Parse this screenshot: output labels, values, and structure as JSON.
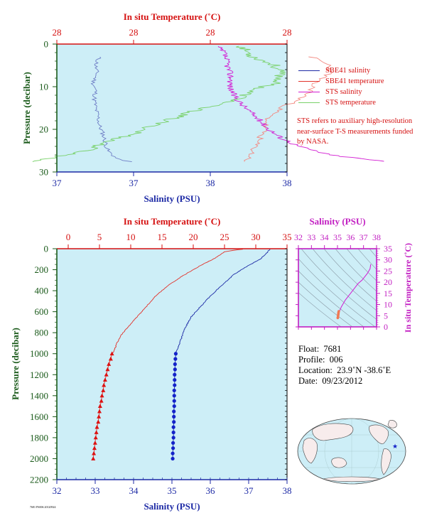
{
  "colors": {
    "plot_bg": "#cdeef7",
    "temp_axis": "#d51111",
    "salinity_axis": "#1d2aa5",
    "pressure_axis": "#1a5a1a",
    "inset_axis": "#c21fc2",
    "sbe_salinity": "#1d2aa5",
    "sbe_temperature": "#e2322a",
    "sts_salinity": "#d21bd2",
    "sts_temperature": "#79d16a",
    "marker_sal": "#1322c9",
    "marker_temp": "#dd1111"
  },
  "top_chart": {
    "temp_axis_title": "In situ Temperature (˚C)",
    "temp_ticks": [
      "28",
      "28",
      "28",
      "28"
    ],
    "salinity_axis_title": "Salinity (PSU)",
    "salinity_ticks": [
      "37",
      "37",
      "38",
      "38"
    ],
    "pressure_axis_title": "Pressure (decibar)",
    "pressure_ticks": [
      "0",
      "10",
      "20",
      "30"
    ],
    "legend": [
      {
        "label": "SBE41 salinity",
        "color": "#1d2aa5"
      },
      {
        "label": "SBE41 temperature",
        "color": "#e2322a"
      },
      {
        "label": "STS salinity",
        "color": "#d21bd2"
      },
      {
        "label": "STS temperature",
        "color": "#79d16a"
      }
    ],
    "note": "STS refers to auxiliary high-resolution near-surface T-S measurements funded by NASA."
  },
  "main_chart": {
    "temp_axis_title": "In situ Temperature (˚C)",
    "temp_ticks": [
      "0",
      "5",
      "10",
      "15",
      "20",
      "25",
      "30",
      "35"
    ],
    "salinity_axis_title": "Salinity (PSU)",
    "salinity_ticks": [
      "32",
      "33",
      "34",
      "35",
      "36",
      "37",
      "38"
    ],
    "pressure_axis_title": "Pressure (decibar)",
    "pressure_ticks": [
      "0",
      "200",
      "400",
      "600",
      "800",
      "1000",
      "1200",
      "1400",
      "1600",
      "1800",
      "2000",
      "2200"
    ]
  },
  "inset": {
    "salinity_axis_title": "Salinity (PSU)",
    "salinity_ticks": [
      "32",
      "33",
      "34",
      "35",
      "36",
      "37",
      "38"
    ],
    "temp_axis_title": "In situ Temperature (˚C)",
    "temp_ticks": [
      "0",
      "5",
      "10",
      "15",
      "20",
      "25",
      "30",
      "35"
    ]
  },
  "info": {
    "float_label": "Float:",
    "float_value": "7681",
    "profile_label": "Profile:",
    "profile_value": "006",
    "location_label": "Location:",
    "location_value": "23.9˚N  -38.6˚E",
    "date_label": "Date:",
    "date_value": "09/23/2012"
  },
  "credit": "7681 PS006 20120924",
  "chart_data": [
    {
      "type": "line",
      "title": "",
      "xlabel": "Salinity (PSU)",
      "x2label": "In situ Temperature (˚C)",
      "ylabel": "Pressure (decibar)",
      "ylim": [
        30,
        0
      ],
      "grid": false,
      "legend_position": "right",
      "series": [
        {
          "name": "SBE41 salinity",
          "axis": "salinity",
          "color": "#1d2aa5",
          "points": [
            [
              36.55,
              3
            ],
            [
              36.52,
              5
            ],
            [
              36.53,
              7
            ],
            [
              36.5,
              9
            ],
            [
              36.52,
              11
            ],
            [
              36.51,
              13
            ],
            [
              36.52,
              15
            ],
            [
              36.54,
              17
            ],
            [
              36.55,
              19
            ],
            [
              36.58,
              21
            ],
            [
              36.6,
              23
            ],
            [
              36.62,
              25
            ],
            [
              36.7,
              27
            ],
            [
              36.82,
              27.6
            ]
          ]
        },
        {
          "name": "SBE41 temperature",
          "axis": "temperature",
          "color": "#e2322a",
          "points": [
            [
              38.3,
              3
            ],
            [
              38.45,
              5
            ],
            [
              38.45,
              7
            ],
            [
              38.32,
              9
            ],
            [
              38.3,
              11
            ],
            [
              38.2,
              13
            ],
            [
              38.05,
              15
            ],
            [
              37.95,
              17
            ],
            [
              37.92,
              19
            ],
            [
              37.9,
              21
            ],
            [
              37.85,
              23
            ],
            [
              37.82,
              25
            ],
            [
              37.78,
              27
            ],
            [
              37.75,
              27.6
            ]
          ]
        },
        {
          "name": "STS salinity",
          "axis": "salinity",
          "color": "#d21bd2",
          "points": [
            [
              37.52,
              0.5
            ],
            [
              37.58,
              2
            ],
            [
              37.6,
              4
            ],
            [
              37.62,
              6
            ],
            [
              37.64,
              8
            ],
            [
              37.63,
              10
            ],
            [
              37.66,
              12
            ],
            [
              37.72,
              14
            ],
            [
              37.8,
              16
            ],
            [
              37.88,
              18
            ],
            [
              37.95,
              20
            ],
            [
              38.05,
              22
            ],
            [
              38.2,
              24
            ],
            [
              38.45,
              26
            ],
            [
              38.9,
              27.5
            ]
          ]
        },
        {
          "name": "STS temperature",
          "axis": "temperature",
          "color": "#79d16a",
          "points": [
            [
              37.72,
              0.5
            ],
            [
              37.82,
              3
            ],
            [
              38.0,
              5
            ],
            [
              38.05,
              7
            ],
            [
              38.02,
              9
            ],
            [
              37.8,
              11
            ],
            [
              37.7,
              13
            ],
            [
              37.4,
              15
            ],
            [
              37.2,
              17
            ],
            [
              37.0,
              19
            ],
            [
              36.85,
              21
            ],
            [
              36.6,
              23
            ],
            [
              36.45,
              25
            ],
            [
              36.2,
              26.5
            ],
            [
              36.0,
              27.6
            ]
          ]
        }
      ]
    },
    {
      "type": "line",
      "title": "",
      "xlabel": "Salinity (PSU)",
      "x2label": "In situ Temperature (˚C)",
      "ylabel": "Pressure (decibar)",
      "xlim": [
        32,
        38
      ],
      "x2lim": [
        0,
        35
      ],
      "ylim": [
        2200,
        0
      ],
      "grid": false,
      "series": [
        {
          "name": "SBE41 salinity",
          "axis": "salinity",
          "color": "#1d2aa5",
          "points": [
            [
              37.55,
              5
            ],
            [
              37.45,
              50
            ],
            [
              37.3,
              100
            ],
            [
              36.9,
              180
            ],
            [
              36.6,
              250
            ],
            [
              36.3,
              350
            ],
            [
              36.0,
              450
            ],
            [
              35.75,
              550
            ],
            [
              35.5,
              650
            ],
            [
              35.35,
              750
            ],
            [
              35.25,
              850
            ],
            [
              35.15,
              950
            ],
            [
              35.1,
              1000
            ]
          ],
          "markers": [
            [
              35.1,
              1000
            ],
            [
              35.09,
              1050
            ],
            [
              35.08,
              1100
            ],
            [
              35.08,
              1150
            ],
            [
              35.07,
              1200
            ],
            [
              35.07,
              1250
            ],
            [
              35.07,
              1300
            ],
            [
              35.06,
              1350
            ],
            [
              35.06,
              1400
            ],
            [
              35.06,
              1450
            ],
            [
              35.06,
              1500
            ],
            [
              35.05,
              1550
            ],
            [
              35.05,
              1600
            ],
            [
              35.05,
              1650
            ],
            [
              35.04,
              1700
            ],
            [
              35.04,
              1750
            ],
            [
              35.04,
              1800
            ],
            [
              35.03,
              1850
            ],
            [
              35.03,
              1900
            ],
            [
              35.02,
              1950
            ],
            [
              35.02,
              2000
            ]
          ]
        },
        {
          "name": "SBE41 temperature",
          "axis": "temperature",
          "color": "#e2322a",
          "points": [
            [
              28.0,
              5
            ],
            [
              27.0,
              10
            ],
            [
              25.0,
              30
            ],
            [
              23.5,
              90
            ],
            [
              21.5,
              150
            ],
            [
              20.0,
              200
            ],
            [
              18.0,
              270
            ],
            [
              16.0,
              350
            ],
            [
              14.0,
              450
            ],
            [
              12.5,
              550
            ],
            [
              11.0,
              650
            ],
            [
              9.5,
              750
            ],
            [
              8.5,
              820
            ],
            [
              7.8,
              900
            ],
            [
              7.3,
              980
            ],
            [
              7.0,
              1000
            ]
          ],
          "markers": [
            [
              7.0,
              1000
            ],
            [
              6.8,
              1050
            ],
            [
              6.5,
              1100
            ],
            [
              6.3,
              1150
            ],
            [
              6.1,
              1200
            ],
            [
              5.9,
              1250
            ],
            [
              5.7,
              1300
            ],
            [
              5.6,
              1350
            ],
            [
              5.4,
              1400
            ],
            [
              5.3,
              1450
            ],
            [
              5.1,
              1500
            ],
            [
              5.0,
              1550
            ],
            [
              4.9,
              1600
            ],
            [
              4.8,
              1650
            ],
            [
              4.6,
              1700
            ],
            [
              4.5,
              1750
            ],
            [
              4.4,
              1800
            ],
            [
              4.3,
              1850
            ],
            [
              4.2,
              1900
            ],
            [
              4.1,
              1950
            ],
            [
              4.0,
              2000
            ]
          ]
        }
      ]
    },
    {
      "type": "line",
      "title": "",
      "xlabel": "Salinity (PSU)",
      "ylabel": "In situ Temperature (˚C)",
      "xlim": [
        32,
        38
      ],
      "ylim": [
        0,
        35
      ],
      "series": [
        {
          "name": "T-S profile",
          "color": "#d21bd2",
          "points": [
            [
              37.55,
              28
            ],
            [
              37.5,
              26
            ],
            [
              37.3,
              24
            ],
            [
              36.9,
              21
            ],
            [
              36.6,
              19.5
            ],
            [
              36.0,
              15
            ],
            [
              35.6,
              12
            ],
            [
              35.3,
              9
            ],
            [
              35.15,
              7
            ],
            [
              35.1,
              6
            ],
            [
              35.05,
              5
            ],
            [
              35.02,
              4
            ]
          ],
          "markers": [
            [
              35.1,
              7.0
            ],
            [
              35.08,
              6.5
            ],
            [
              35.07,
              6.0
            ],
            [
              35.06,
              5.5
            ],
            [
              35.05,
              5.0
            ],
            [
              35.04,
              4.5
            ],
            [
              35.03,
              4.2
            ],
            [
              35.02,
              4.0
            ]
          ]
        }
      ]
    }
  ]
}
